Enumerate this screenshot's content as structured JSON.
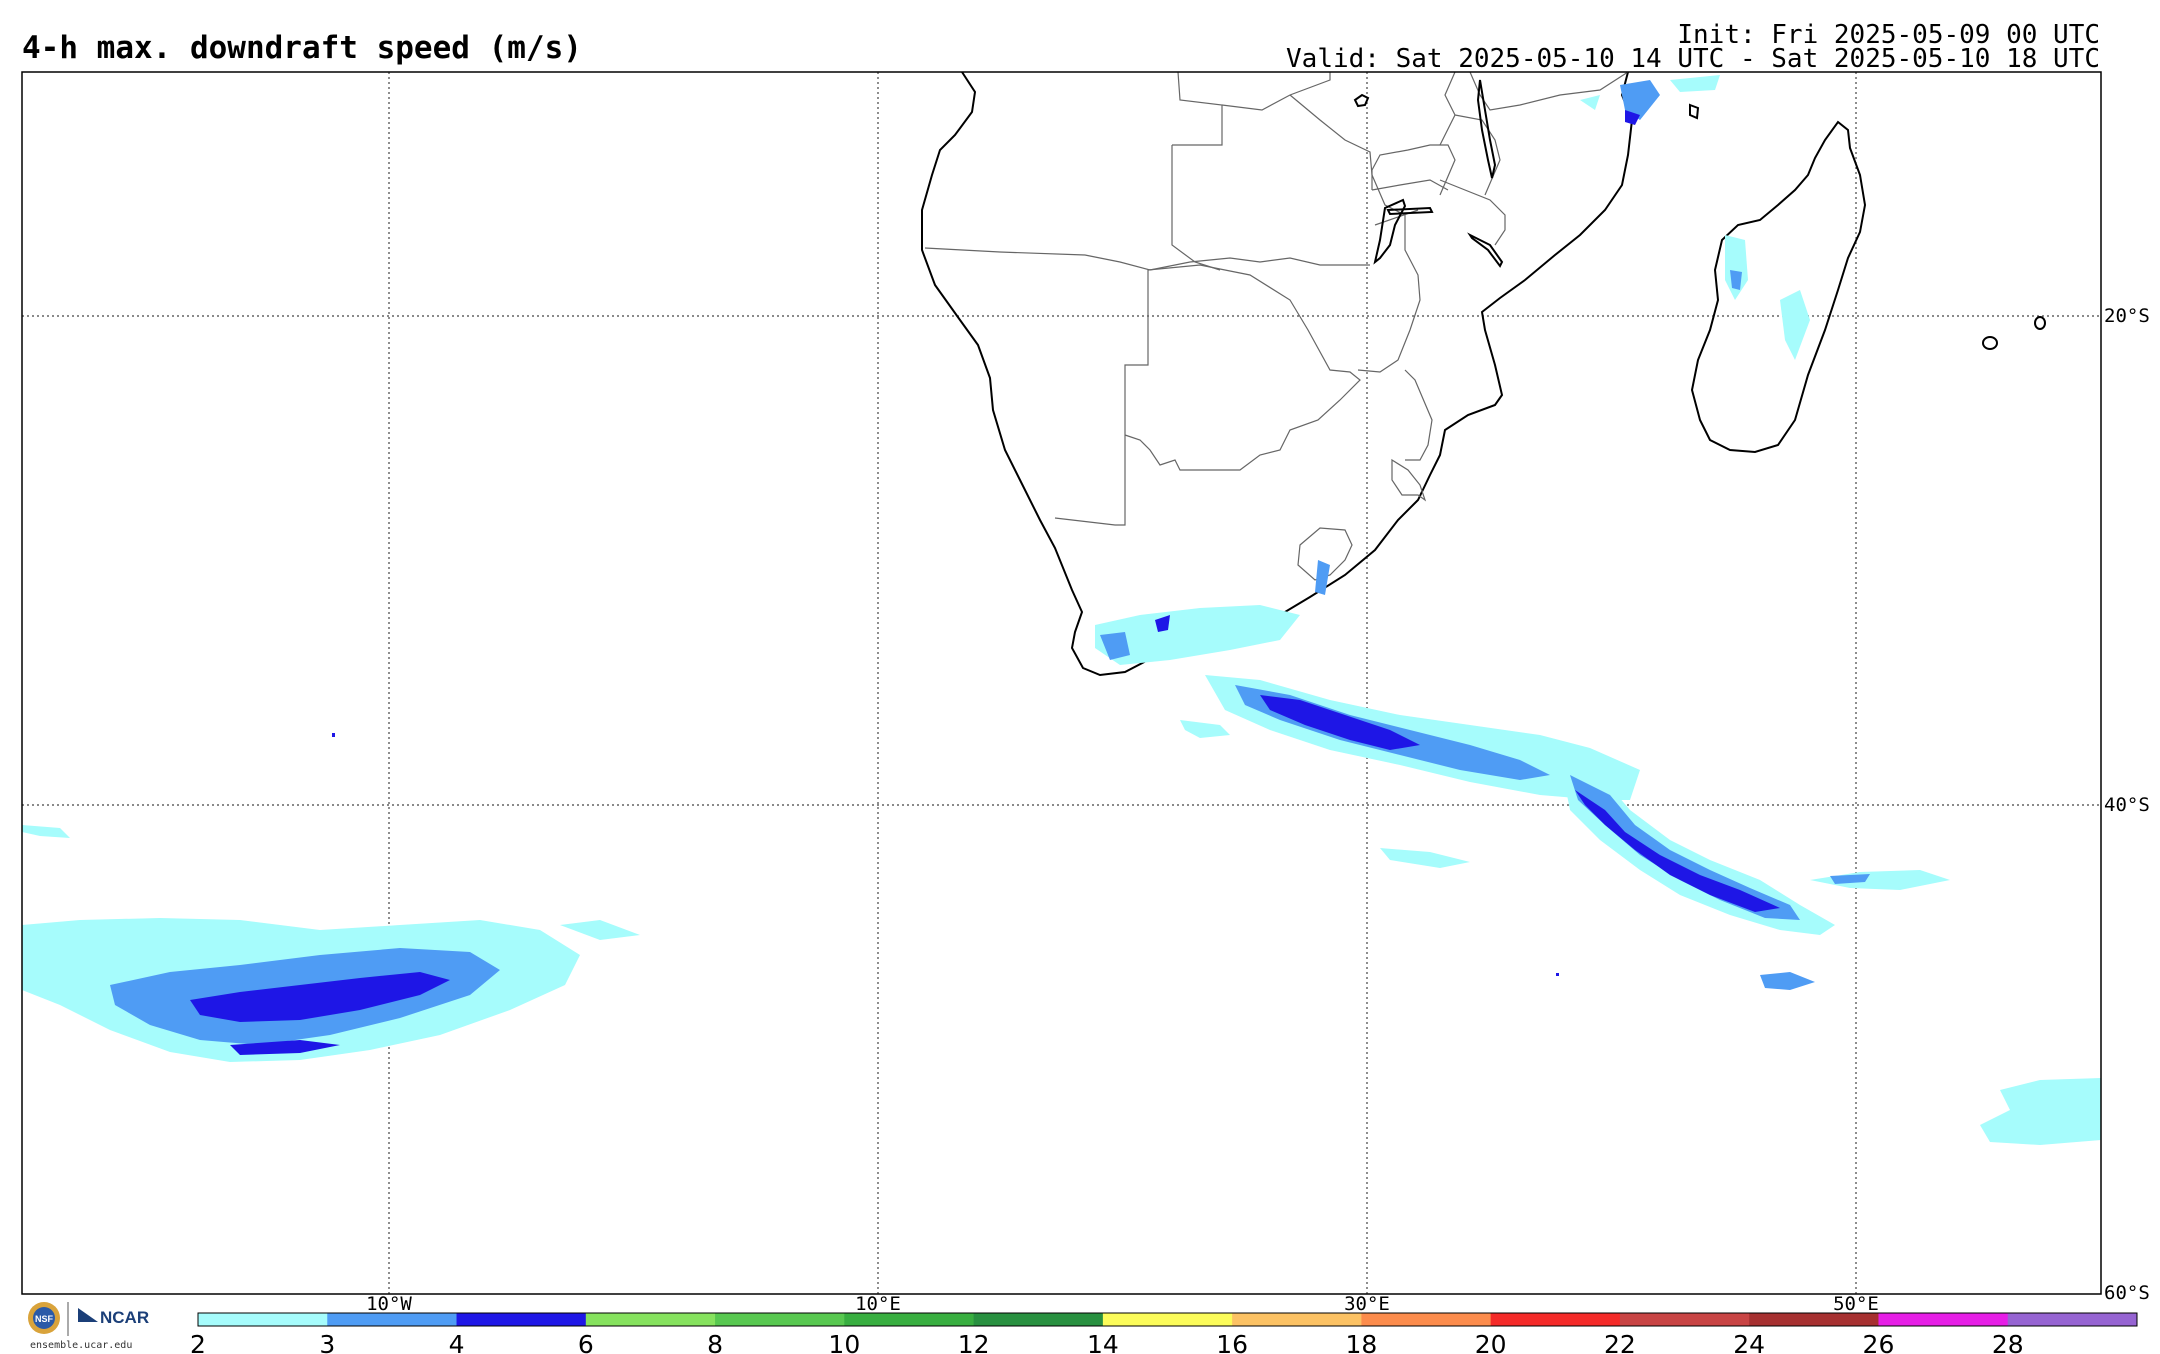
{
  "header": {
    "title": "4-h max. downdraft speed (m/s)",
    "init": "Init: Fri 2025-05-09 00 UTC",
    "valid": "Valid: Sat 2025-05-10 14 UTC - Sat 2025-05-10 18 UTC"
  },
  "map": {
    "region": "Southern Africa and South Atlantic / Indian Ocean",
    "lon_labels": [
      "10°W",
      "10°E",
      "30°E",
      "50°E"
    ],
    "lat_labels": [
      "20°S",
      "40°S",
      "60°S"
    ]
  },
  "colorbar": {
    "tick_labels": [
      "2",
      "3",
      "4",
      "6",
      "8",
      "10",
      "12",
      "14",
      "16",
      "18",
      "20",
      "22",
      "24",
      "26",
      "28"
    ],
    "colors": [
      "#a6fcfc",
      "#4f9cf4",
      "#1e16e6",
      "#86e25e",
      "#58c850",
      "#38ae40",
      "#289040",
      "#fcfc5a",
      "#fcc264",
      "#fc8c4c",
      "#f42a28",
      "#c84444",
      "#a63030",
      "#e61ee6",
      "#9664d2"
    ]
  },
  "logo": {
    "url": "ensemble.ucar.edu",
    "ncar": "NCAR",
    "nsf": "NSF"
  }
}
